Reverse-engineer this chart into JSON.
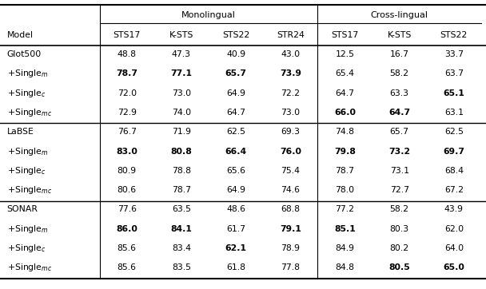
{
  "col_headers": [
    "Model",
    "STS17",
    "K-STS",
    "STS22",
    "STR24",
    "STS17",
    "K-STS",
    "STS22"
  ],
  "mono_label": "Monolingual",
  "cross_label": "Cross-lingual",
  "mono_col_span": [
    1,
    4
  ],
  "cross_col_span": [
    5,
    7
  ],
  "rows": [
    [
      "Glot500",
      "48.8",
      "47.3",
      "40.9",
      "43.0",
      "12.5",
      "16.7",
      "33.7"
    ],
    [
      "+Single$_m$",
      "78.7",
      "77.1",
      "65.7",
      "73.9",
      "65.4",
      "58.2",
      "63.7"
    ],
    [
      "+Single$_c$",
      "72.0",
      "73.0",
      "64.9",
      "72.2",
      "64.7",
      "63.3",
      "65.1"
    ],
    [
      "+Single$_{mc}$",
      "72.9",
      "74.0",
      "64.7",
      "73.0",
      "66.0",
      "64.7",
      "63.1"
    ],
    [
      "LaBSE",
      "76.7",
      "71.9",
      "62.5",
      "69.3",
      "74.8",
      "65.7",
      "62.5"
    ],
    [
      "+Single$_m$",
      "83.0",
      "80.8",
      "66.4",
      "76.0",
      "79.8",
      "73.2",
      "69.7"
    ],
    [
      "+Single$_c$",
      "80.9",
      "78.8",
      "65.6",
      "75.4",
      "78.7",
      "73.1",
      "68.4"
    ],
    [
      "+Single$_{mc}$",
      "80.6",
      "78.7",
      "64.9",
      "74.6",
      "78.0",
      "72.7",
      "67.2"
    ],
    [
      "SONAR",
      "77.6",
      "63.5",
      "48.6",
      "68.8",
      "77.2",
      "58.2",
      "43.9"
    ],
    [
      "+Single$_m$",
      "86.0",
      "84.1",
      "61.7",
      "79.1",
      "85.1",
      "80.3",
      "62.0"
    ],
    [
      "+Single$_c$",
      "85.6",
      "83.4",
      "62.1",
      "78.9",
      "84.9",
      "80.2",
      "64.0"
    ],
    [
      "+Single$_{mc}$",
      "85.6",
      "83.5",
      "61.8",
      "77.8",
      "84.8",
      "80.5",
      "65.0"
    ]
  ],
  "bold": [
    [
      false,
      false,
      false,
      false,
      false,
      false,
      false,
      false
    ],
    [
      false,
      true,
      true,
      true,
      true,
      false,
      false,
      false
    ],
    [
      false,
      false,
      false,
      false,
      false,
      false,
      false,
      true
    ],
    [
      false,
      false,
      false,
      false,
      false,
      true,
      true,
      false
    ],
    [
      false,
      false,
      false,
      false,
      false,
      false,
      false,
      false
    ],
    [
      false,
      true,
      true,
      true,
      true,
      true,
      true,
      true
    ],
    [
      false,
      false,
      false,
      false,
      false,
      false,
      false,
      false
    ],
    [
      false,
      false,
      false,
      false,
      false,
      false,
      false,
      false
    ],
    [
      false,
      false,
      false,
      false,
      false,
      false,
      false,
      false
    ],
    [
      false,
      true,
      true,
      false,
      true,
      true,
      false,
      false
    ],
    [
      false,
      false,
      false,
      true,
      false,
      false,
      false,
      false
    ],
    [
      false,
      false,
      false,
      false,
      false,
      false,
      true,
      true
    ]
  ],
  "group_sep_after": [
    3,
    7
  ],
  "figsize": [
    6.08,
    3.62
  ],
  "dpi": 100
}
